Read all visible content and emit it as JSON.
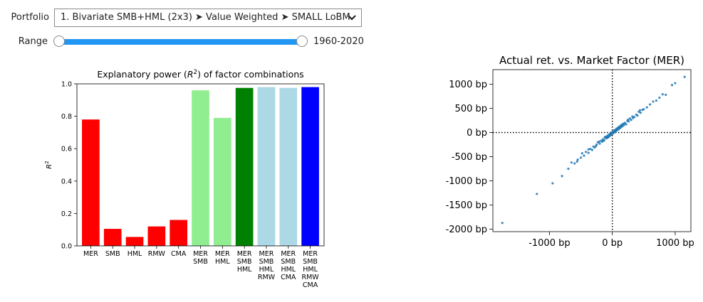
{
  "controls": {
    "portfolio_label": "Portfolio",
    "portfolio_value": "1. Bivariate SMB+HML (2x3) ➤ Value Weighted ➤ SMALL LoBM",
    "range_label": "Range",
    "range_value": "1960-2020"
  },
  "chart_data": [
    {
      "type": "bar",
      "title": "Explanatory power ($R^2$) of factor combinations",
      "ylabel": "$R^2$",
      "ylim": [
        0,
        1.0
      ],
      "yticks": [
        "0.0",
        "0.2",
        "0.4",
        "0.6",
        "0.8",
        "1.0"
      ],
      "grid": false,
      "categories": [
        [
          "MER"
        ],
        [
          "SMB"
        ],
        [
          "HML"
        ],
        [
          "RMW"
        ],
        [
          "CMA"
        ],
        [
          "MER",
          "SMB"
        ],
        [
          "MER",
          "HML"
        ],
        [
          "MER",
          "SMB",
          "HML"
        ],
        [
          "MER",
          "SMB",
          "HML",
          "RMW"
        ],
        [
          "MER",
          "SMB",
          "HML",
          "CMA"
        ],
        [
          "MER",
          "SMB",
          "HML",
          "RMW",
          "CMA"
        ]
      ],
      "values": [
        0.78,
        0.105,
        0.055,
        0.12,
        0.16,
        0.96,
        0.79,
        0.975,
        0.98,
        0.975,
        0.98
      ],
      "colors": [
        "#ff0000",
        "#ff0000",
        "#ff0000",
        "#ff0000",
        "#ff0000",
        "#90ee90",
        "#90ee90",
        "#008000",
        "#add8e6",
        "#add8e6",
        "#0000ff"
      ]
    },
    {
      "type": "scatter",
      "title": "Actual ret. vs. Market Factor (MER)",
      "xlim": [
        -1900,
        1250
      ],
      "ylim": [
        -2050,
        1300
      ],
      "xticks": [
        {
          "v": -1000,
          "label": "-1000 bp"
        },
        {
          "v": 0,
          "label": "0 bp"
        },
        {
          "v": 1000,
          "label": "1000 bp"
        }
      ],
      "yticks": [
        {
          "v": 1000,
          "label": "1000 bp"
        },
        {
          "v": 500,
          "label": "500 bp"
        },
        {
          "v": 0,
          "label": "0 bp"
        },
        {
          "v": -500,
          "label": "-500 bp"
        },
        {
          "v": -1000,
          "label": "-1000 bp"
        },
        {
          "v": -1500,
          "label": "-1500 bp"
        },
        {
          "v": -2000,
          "label": "-2000 bp"
        }
      ],
      "reference_lines": "dotted lines at x=0 and y=0",
      "point_color": "#1f77b4",
      "points": [
        [
          -1750,
          -1870
        ],
        [
          -1200,
          -1270
        ],
        [
          -950,
          -1050
        ],
        [
          -800,
          -900
        ],
        [
          -700,
          -750
        ],
        [
          -650,
          -620
        ],
        [
          -600,
          -640
        ],
        [
          -550,
          -560
        ],
        [
          -500,
          -520
        ],
        [
          -450,
          -480
        ],
        [
          -420,
          -400
        ],
        [
          -380,
          -420
        ],
        [
          -350,
          -340
        ],
        [
          -320,
          -360
        ],
        [
          -300,
          -290
        ],
        [
          -280,
          -310
        ],
        [
          -250,
          -250
        ],
        [
          -230,
          -200
        ],
        [
          -200,
          -230
        ],
        [
          -180,
          -170
        ],
        [
          -160,
          -190
        ],
        [
          -150,
          -140
        ],
        [
          -130,
          -160
        ],
        [
          -120,
          -100
        ],
        [
          -100,
          -120
        ],
        [
          -90,
          -80
        ],
        [
          -80,
          -110
        ],
        [
          -70,
          -60
        ],
        [
          -60,
          -90
        ],
        [
          -50,
          -40
        ],
        [
          -40,
          -70
        ],
        [
          -30,
          -20
        ],
        [
          -20,
          -50
        ],
        [
          -10,
          0
        ],
        [
          0,
          -30
        ],
        [
          10,
          20
        ],
        [
          20,
          -10
        ],
        [
          30,
          40
        ],
        [
          40,
          10
        ],
        [
          50,
          60
        ],
        [
          60,
          30
        ],
        [
          70,
          80
        ],
        [
          80,
          50
        ],
        [
          90,
          100
        ],
        [
          100,
          70
        ],
        [
          110,
          120
        ],
        [
          120,
          90
        ],
        [
          130,
          140
        ],
        [
          140,
          110
        ],
        [
          150,
          160
        ],
        [
          160,
          130
        ],
        [
          170,
          180
        ],
        [
          180,
          150
        ],
        [
          200,
          200
        ],
        [
          220,
          170
        ],
        [
          240,
          240
        ],
        [
          260,
          230
        ],
        [
          280,
          290
        ],
        [
          300,
          260
        ],
        [
          320,
          330
        ],
        [
          350,
          320
        ],
        [
          380,
          370
        ],
        [
          400,
          350
        ],
        [
          420,
          430
        ],
        [
          450,
          410
        ],
        [
          480,
          470
        ],
        [
          500,
          480
        ],
        [
          550,
          520
        ],
        [
          600,
          580
        ],
        [
          650,
          640
        ],
        [
          700,
          660
        ],
        [
          750,
          720
        ],
        [
          800,
          790
        ],
        [
          850,
          780
        ],
        [
          950,
          980
        ],
        [
          1000,
          1020
        ],
        [
          1150,
          1150
        ],
        [
          -560,
          -600
        ],
        [
          -480,
          -430
        ],
        [
          -380,
          -350
        ],
        [
          -260,
          -280
        ],
        [
          -210,
          -190
        ],
        [
          -140,
          -170
        ],
        [
          -110,
          -90
        ],
        [
          -70,
          -100
        ],
        [
          -30,
          -50
        ],
        [
          15,
          5
        ],
        [
          45,
          35
        ],
        [
          75,
          65
        ],
        [
          115,
          95
        ],
        [
          145,
          135
        ],
        [
          190,
          175
        ],
        [
          250,
          265
        ],
        [
          330,
          300
        ],
        [
          440,
          460
        ]
      ]
    }
  ]
}
